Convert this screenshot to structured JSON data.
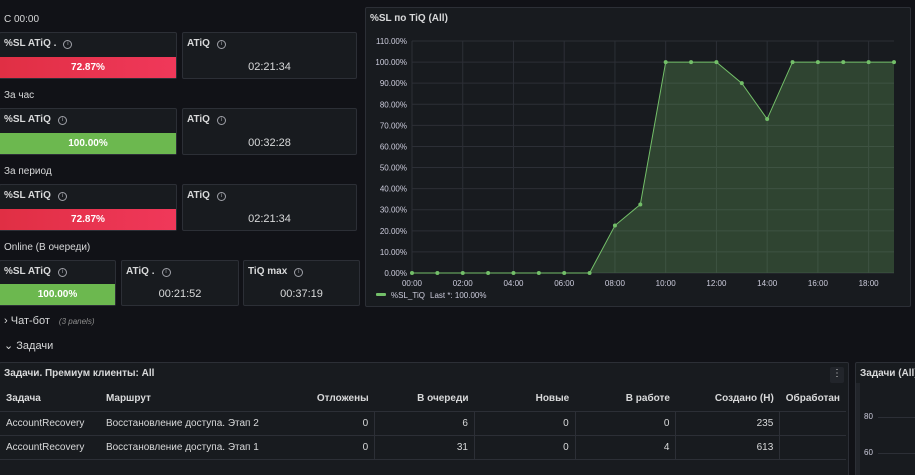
{
  "sections": {
    "since_midnight": "С 00:00",
    "per_hour": "За час",
    "per_period": "За период",
    "online": "Online (В очереди)"
  },
  "info_glyph": "i",
  "stats": {
    "sl_midnight": {
      "title": "%SL ATiQ .",
      "value": "72.87%",
      "fill": 1.0,
      "color": "#e02f44"
    },
    "atiq_midnight": {
      "title": "ATiQ",
      "value": "02:21:34"
    },
    "sl_hour": {
      "title": "%SL ATiQ",
      "value": "100.00%",
      "fill": 1.0,
      "color": "#6cb84f"
    },
    "atiq_hour": {
      "title": "ATiQ",
      "value": "00:32:28"
    },
    "sl_period": {
      "title": "%SL ATiQ",
      "value": "72.87%",
      "fill": 1.0,
      "color": "#e02f44"
    },
    "atiq_period": {
      "title": "ATiQ",
      "value": "02:21:34"
    },
    "sl_online": {
      "title": "%SL ATiQ",
      "value": "100.00%",
      "fill": 1.0,
      "color": "#6cb84f"
    },
    "atiq_online": {
      "title": "ATiQ .",
      "value": "00:21:52"
    },
    "tiq_max": {
      "title": "TiQ max",
      "value": "00:37:19"
    }
  },
  "chart_panel": {
    "title": "%SL по TiQ (All)"
  },
  "chart_data": {
    "type": "area",
    "title": "%SL по TiQ (All)",
    "x": [
      "00:00",
      "01:00",
      "02:00",
      "03:00",
      "04:00",
      "05:00",
      "06:00",
      "07:00",
      "08:00",
      "09:00",
      "10:00",
      "11:00",
      "12:00",
      "13:00",
      "14:00",
      "15:00",
      "16:00",
      "17:00",
      "18:00",
      "19:00"
    ],
    "series": [
      {
        "name": "%SL_TiQ",
        "color": "#73bf69",
        "values": [
          0,
          0,
          0,
          0,
          0,
          0,
          0,
          0,
          22.5,
          32.5,
          100,
          100,
          100,
          90,
          73,
          100,
          100,
          100,
          100,
          100
        ]
      }
    ],
    "ylim": [
      0,
      110
    ],
    "y_ticks": [
      "0.00%",
      "10.00%",
      "20.00%",
      "30.00%",
      "40.00%",
      "50.00%",
      "60.00%",
      "70.00%",
      "80.00%",
      "90.00%",
      "100.00%",
      "110.00%"
    ],
    "x_ticks": [
      "00:00",
      "02:00",
      "04:00",
      "06:00",
      "08:00",
      "10:00",
      "12:00",
      "14:00",
      "16:00",
      "18:00"
    ],
    "legend": {
      "label": "%SL_TiQ",
      "last": "Last *: 100.00%",
      "placement": "bottom-left"
    },
    "grid": true
  },
  "rows": {
    "chatbot": {
      "label": "Чат-бот",
      "sub": "(3 panels)",
      "chevron": "›"
    },
    "tasks": {
      "label": "Задачи",
      "chevron": "⌄"
    }
  },
  "tasks_table": {
    "title": "Задачи. Премиум клиенты: All",
    "menu": "⋮",
    "headers": [
      "Задача",
      "Маршрут",
      "Отложены",
      "В очереди",
      "Новые",
      "В работе",
      "Создано (Н)",
      "Обработан"
    ],
    "rows": [
      [
        "AccountRecovery",
        "Восстановление доступа. Этап 2",
        "0",
        "6",
        "0",
        "0",
        "235",
        ""
      ],
      [
        "AccountRecovery",
        "Восстановление доступа. Этап 1",
        "0",
        "31",
        "0",
        "4",
        "613",
        ""
      ]
    ]
  },
  "side_panel": {
    "title": "Задачи (All)",
    "y_ticks": [
      "80",
      "60"
    ]
  }
}
